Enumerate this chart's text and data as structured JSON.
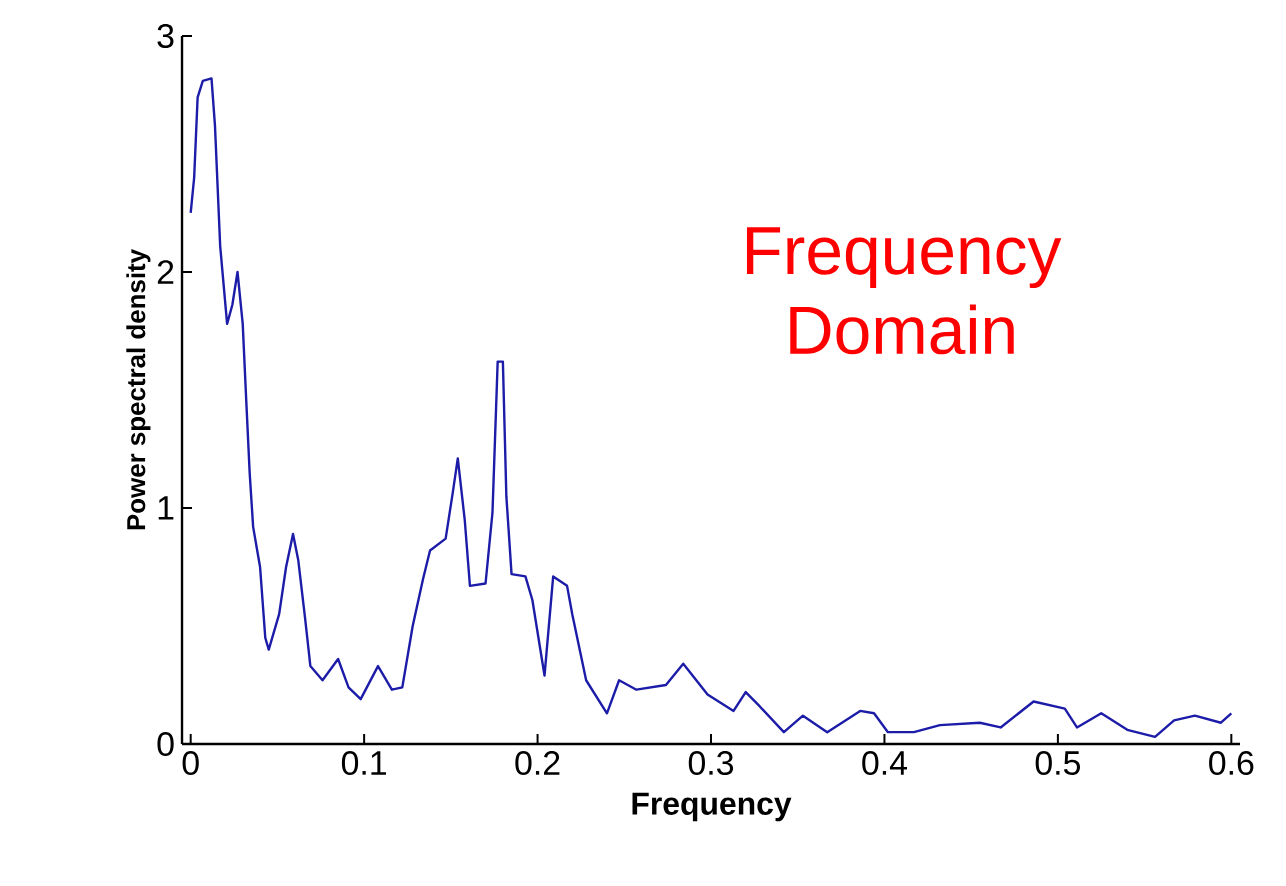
{
  "chart_data": {
    "type": "line",
    "xlabel": "Frequency",
    "ylabel": "Power spectral density",
    "annotations": [
      "Frequency Domain"
    ],
    "xlim": [
      -0.005,
      0.605
    ],
    "ylim": [
      0,
      3
    ],
    "xticks": [
      0,
      0.1,
      0.2,
      0.3,
      0.4,
      0.5,
      0.6
    ],
    "yticks": [
      0,
      1,
      2,
      3
    ],
    "grid": false,
    "series": [
      {
        "color": "#1c1ca8",
        "x": [
          0,
          0.002,
          0.004,
          0.007,
          0.012,
          0.014,
          0.017,
          0.021,
          0.024,
          0.027,
          0.03,
          0.032,
          0.034,
          0.036,
          0.04,
          0.043,
          0.045,
          0.051,
          0.055,
          0.059,
          0.062,
          0.066,
          0.069,
          0.076,
          0.085,
          0.091,
          0.098,
          0.108,
          0.116,
          0.122,
          0.128,
          0.134,
          0.138,
          0.147,
          0.151,
          0.154,
          0.158,
          0.161,
          0.17,
          0.174,
          0.177,
          0.18,
          0.182,
          0.185,
          0.193,
          0.197,
          0.204,
          0.209,
          0.217,
          0.22,
          0.228,
          0.24,
          0.247,
          0.257,
          0.274,
          0.284,
          0.298,
          0.313,
          0.32,
          0.328,
          0.342,
          0.353,
          0.367,
          0.386,
          0.394,
          0.402,
          0.417,
          0.432,
          0.455,
          0.467,
          0.486,
          0.504,
          0.511,
          0.525,
          0.54,
          0.556,
          0.567,
          0.579,
          0.594,
          0.6
        ],
        "values": [
          2.25,
          2.4,
          2.74,
          2.81,
          2.82,
          2.62,
          2.11,
          1.78,
          1.86,
          2.0,
          1.78,
          1.46,
          1.15,
          0.92,
          0.75,
          0.45,
          0.4,
          0.55,
          0.75,
          0.89,
          0.78,
          0.53,
          0.33,
          0.27,
          0.36,
          0.24,
          0.19,
          0.33,
          0.23,
          0.24,
          0.5,
          0.7,
          0.82,
          0.87,
          1.06,
          1.21,
          0.95,
          0.67,
          0.68,
          0.98,
          1.62,
          1.62,
          1.05,
          0.72,
          0.71,
          0.61,
          0.29,
          0.71,
          0.67,
          0.55,
          0.27,
          0.13,
          0.27,
          0.23,
          0.25,
          0.34,
          0.21,
          0.14,
          0.22,
          0.16,
          0.05,
          0.12,
          0.05,
          0.14,
          0.13,
          0.05,
          0.05,
          0.08,
          0.09,
          0.07,
          0.18,
          0.15,
          0.07,
          0.13,
          0.06,
          0.03,
          0.1,
          0.12,
          0.09,
          0.13
        ]
      }
    ]
  }
}
